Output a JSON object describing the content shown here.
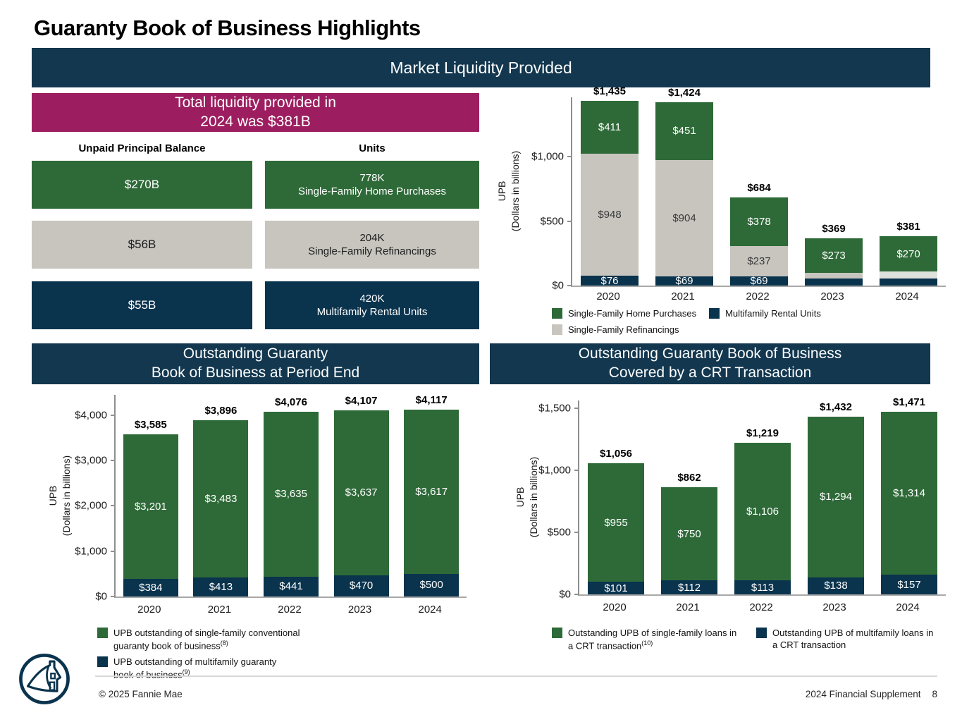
{
  "page": {
    "title": "Guaranty Book of Business Highlights",
    "footer": {
      "copyright": "© 2025 Fannie Mae",
      "doc": "2024 Financial Supplement",
      "page_number": "8"
    }
  },
  "colors": {
    "navy": "#0a334d",
    "banner_navy": "#12374f",
    "green": "#2e6a38",
    "gray": "#c8c5bf",
    "gray_light": "#dfe1dc",
    "magenta": "#9d1e60"
  },
  "market_liquidity": {
    "banner": "Market Liquidity Provided",
    "callout_line1": "Total liquidity provided in",
    "callout_line2": "2024 was $381B",
    "col_upb_header": "Unpaid Principal Balance",
    "col_units_header": "Units",
    "rows": [
      {
        "upb": "$270B",
        "units_line1": "778K",
        "units_line2": "Single-Family Home Purchases",
        "color": "green"
      },
      {
        "upb": "$56B",
        "units_line1": "204K",
        "units_line2": "Single-Family Refinancings",
        "color": "gray"
      },
      {
        "upb": "$55B",
        "units_line1": "420K",
        "units_line2": "Multifamily Rental Units",
        "color": "navy"
      }
    ]
  },
  "chart_data": [
    {
      "type": "bar",
      "stacked": true,
      "title": "Market Liquidity Provided",
      "ylabel_line1": "UPB",
      "ylabel_line2": "(Dollars in billions)",
      "ymax": 1460,
      "yticks": [
        {
          "label": "$0",
          "value": 0
        },
        {
          "label": "$500",
          "value": 500
        },
        {
          "label": "$1,000",
          "value": 1000
        }
      ],
      "categories": [
        "2020",
        "2021",
        "2022",
        "2023",
        "2024"
      ],
      "series_names": [
        "Multifamily Rental Units",
        "Single-Family Refinancings",
        "Single-Family Home Purchases"
      ],
      "series_colors": [
        "navy",
        "gray",
        "green"
      ],
      "bars": [
        {
          "total": "$1,435",
          "segments": [
            {
              "value": 76,
              "label": "$76"
            },
            {
              "value": 948,
              "label": "$948"
            },
            {
              "value": 411,
              "label": "$411"
            }
          ]
        },
        {
          "total": "$1,424",
          "segments": [
            {
              "value": 69,
              "label": "$69"
            },
            {
              "value": 904,
              "label": "$904"
            },
            {
              "value": 451,
              "label": "$451"
            }
          ]
        },
        {
          "total": "$684",
          "segments": [
            {
              "value": 69,
              "label": "$69"
            },
            {
              "value": 237,
              "label": "$237"
            },
            {
              "value": 378,
              "label": "$378"
            }
          ]
        },
        {
          "total": "$369",
          "segments": [
            {
              "value": 55,
              "label": ""
            },
            {
              "value": 41,
              "label": ""
            },
            {
              "value": 273,
              "label": "$273"
            }
          ]
        },
        {
          "total": "$381",
          "segments": [
            {
              "value": 55,
              "label": ""
            },
            {
              "value": 56,
              "label": "",
              "color": "gray_light"
            },
            {
              "value": 270,
              "label": "$270"
            }
          ]
        }
      ],
      "legend": [
        {
          "color": "green",
          "text": "Single-Family Home Purchases"
        },
        {
          "color": "navy",
          "text": "Multifamily Rental Units"
        },
        {
          "color": "gray",
          "text": "Single-Family Refinancings"
        }
      ]
    },
    {
      "type": "bar",
      "stacked": true,
      "title_line1": "Outstanding Guaranty",
      "title_line2": "Book of Business at Period End",
      "ylabel_line1": "UPB",
      "ylabel_line2": "(Dollars in billions)",
      "ymax": 4450,
      "yticks": [
        {
          "label": "$0",
          "value": 0
        },
        {
          "label": "$1,000",
          "value": 1000
        },
        {
          "label": "$2,000",
          "value": 2000
        },
        {
          "label": "$3,000",
          "value": 3000
        },
        {
          "label": "$4,000",
          "value": 4000
        }
      ],
      "categories": [
        "2020",
        "2021",
        "2022",
        "2023",
        "2024"
      ],
      "series_names": [
        "Multifamily guaranty book",
        "Single-family conventional guaranty book"
      ],
      "series_colors": [
        "navy",
        "green"
      ],
      "bars": [
        {
          "total": "$3,585",
          "segments": [
            {
              "value": 384,
              "label": "$384"
            },
            {
              "value": 3201,
              "label": "$3,201"
            }
          ]
        },
        {
          "total": "$3,896",
          "segments": [
            {
              "value": 413,
              "label": "$413"
            },
            {
              "value": 3483,
              "label": "$3,483"
            }
          ]
        },
        {
          "total": "$4,076",
          "segments": [
            {
              "value": 441,
              "label": "$441"
            },
            {
              "value": 3635,
              "label": "$3,635"
            }
          ]
        },
        {
          "total": "$4,107",
          "segments": [
            {
              "value": 470,
              "label": "$470"
            },
            {
              "value": 3637,
              "label": "$3,637"
            }
          ]
        },
        {
          "total": "$4,117",
          "segments": [
            {
              "value": 500,
              "label": "$500"
            },
            {
              "value": 3617,
              "label": "$3,617"
            }
          ]
        }
      ],
      "legend": [
        {
          "color": "green",
          "text": "UPB outstanding of single-family conventional guaranty book of business",
          "sup": "(8)"
        },
        {
          "color": "navy",
          "text": "UPB outstanding of multifamily guaranty book of business",
          "sup": "(9)"
        }
      ]
    },
    {
      "type": "bar",
      "stacked": true,
      "title_line1": "Outstanding Guaranty Book of Business",
      "title_line2": "Covered by a CRT Transaction",
      "ylabel_line1": "UPB",
      "ylabel_line2": "(Dollars in billions)",
      "ymax": 1560,
      "yticks": [
        {
          "label": "$0",
          "value": 0
        },
        {
          "label": "$500",
          "value": 500
        },
        {
          "label": "$1,000",
          "value": 1000
        },
        {
          "label": "$1,500",
          "value": 1500
        }
      ],
      "categories": [
        "2020",
        "2021",
        "2022",
        "2023",
        "2024"
      ],
      "series_names": [
        "Multifamily loans in a CRT transaction",
        "Single-family loans in a CRT transaction"
      ],
      "series_colors": [
        "navy",
        "green"
      ],
      "bars": [
        {
          "total": "$1,056",
          "segments": [
            {
              "value": 101,
              "label": "$101"
            },
            {
              "value": 955,
              "label": "$955"
            }
          ]
        },
        {
          "total": "$862",
          "segments": [
            {
              "value": 112,
              "label": "$112"
            },
            {
              "value": 750,
              "label": "$750"
            }
          ]
        },
        {
          "total": "$1,219",
          "segments": [
            {
              "value": 113,
              "label": "$113"
            },
            {
              "value": 1106,
              "label": "$1,106"
            }
          ]
        },
        {
          "total": "$1,432",
          "segments": [
            {
              "value": 138,
              "label": "$138"
            },
            {
              "value": 1294,
              "label": "$1,294"
            }
          ]
        },
        {
          "total": "$1,471",
          "segments": [
            {
              "value": 157,
              "label": "$157"
            },
            {
              "value": 1314,
              "label": "$1,314"
            }
          ]
        }
      ],
      "legend": [
        {
          "color": "green",
          "text": "Outstanding UPB of single-family loans in a CRT transaction",
          "sup": "(10)"
        },
        {
          "color": "navy",
          "text": "Outstanding UPB of multifamily loans in a CRT transaction"
        }
      ]
    }
  ]
}
